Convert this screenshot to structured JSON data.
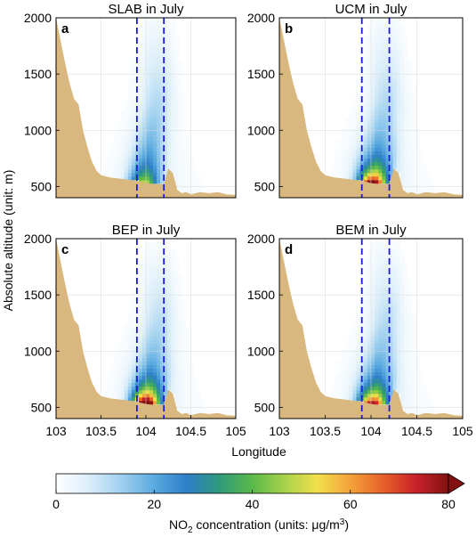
{
  "figure": {
    "ylabel": "Absolute altitude (unit: m)",
    "xlabel": "Longitude",
    "colorbar": {
      "label_prefix": "NO",
      "label_sub": "2",
      "label_mid": " concentration (units: μg/m",
      "label_sup": "3",
      "label_end": ")",
      "ticks": [
        "0",
        "20",
        "40",
        "60",
        "80"
      ],
      "range": [
        0,
        80
      ],
      "extend": "max"
    }
  },
  "chart_data": [
    {
      "type": "heatmap",
      "panel_letter": "a",
      "title": "SLAB in July",
      "xlim": [
        103,
        105
      ],
      "ylim": [
        400,
        2000
      ],
      "x_ticks": [
        "103",
        "103.5",
        "104",
        "104.5",
        "105"
      ],
      "y_ticks": [
        "500",
        "1000",
        "1500",
        "2000"
      ],
      "city_bounds_lon": [
        103.9,
        104.2
      ],
      "peak_lon": 103.98,
      "peak_conc": 28,
      "plume_top_m": 2000
    },
    {
      "type": "heatmap",
      "panel_letter": "b",
      "title": "UCM in July",
      "xlim": [
        103,
        105
      ],
      "ylim": [
        400,
        2000
      ],
      "x_ticks": [
        "103",
        "103.5",
        "104",
        "104.5",
        "105"
      ],
      "y_ticks": [
        "500",
        "1000",
        "1500",
        "2000"
      ],
      "city_bounds_lon": [
        103.9,
        104.2
      ],
      "peak_lon": 104.02,
      "peak_conc": 68,
      "plume_top_m": 2000
    },
    {
      "type": "heatmap",
      "panel_letter": "c",
      "title": "BEP in July",
      "xlim": [
        103,
        105
      ],
      "ylim": [
        400,
        2000
      ],
      "x_ticks": [
        "103",
        "103.5",
        "104",
        "104.5",
        "105"
      ],
      "y_ticks": [
        "500",
        "1000",
        "1500",
        "2000"
      ],
      "city_bounds_lon": [
        103.9,
        104.2
      ],
      "peak_lon": 104.0,
      "peak_conc": 78,
      "plume_top_m": 1900
    },
    {
      "type": "heatmap",
      "panel_letter": "d",
      "title": "BEM in July",
      "xlim": [
        103,
        105
      ],
      "ylim": [
        400,
        2000
      ],
      "x_ticks": [
        "103",
        "103.5",
        "104",
        "104.5",
        "105"
      ],
      "y_ticks": [
        "500",
        "1000",
        "1500",
        "2000"
      ],
      "city_bounds_lon": [
        103.9,
        104.2
      ],
      "peak_lon": 104.02,
      "peak_conc": 62,
      "plume_top_m": 1950
    }
  ],
  "terrain": {
    "lon": [
      103.0,
      103.05,
      103.1,
      103.15,
      103.2,
      103.25,
      103.3,
      103.35,
      103.4,
      103.45,
      103.5,
      103.55,
      103.6,
      103.7,
      103.8,
      103.9,
      104.0,
      104.1,
      104.2,
      104.25,
      104.3,
      104.35,
      104.4,
      104.45,
      104.5,
      104.6,
      104.7,
      104.8,
      104.9,
      105.0
    ],
    "elev": [
      2000,
      1800,
      1600,
      1420,
      1280,
      1230,
      1000,
      850,
      720,
      640,
      600,
      590,
      580,
      570,
      560,
      550,
      530,
      520,
      520,
      660,
      620,
      470,
      440,
      450,
      430,
      450,
      440,
      450,
      430,
      425
    ]
  },
  "colors": {
    "terrain": "#d9b87f",
    "dashed": "#1a1adb",
    "scale": [
      "#ffffff",
      "#dbeef9",
      "#9fd0ef",
      "#5aaae0",
      "#2e7fc8",
      "#2f9a7a",
      "#5ab94a",
      "#a8d24a",
      "#f3e04a",
      "#f3a23a",
      "#e8612a",
      "#c8222a",
      "#821212"
    ]
  }
}
